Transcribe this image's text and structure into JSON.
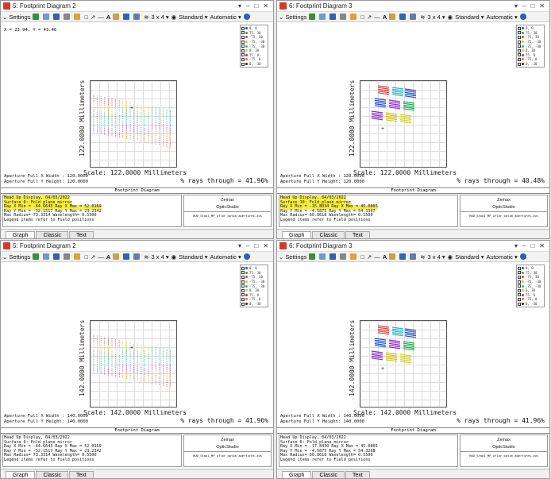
{
  "toolbar": {
    "settings": "Settings",
    "layout": "3 x 4",
    "standard": "Standard",
    "automatic": "Automatic"
  },
  "footer_tabs": [
    "Graph",
    "Classic",
    "Text"
  ],
  "legend_items": [
    "0, 0",
    "75, 30",
    "-75, 30",
    "-75, -30",
    "-75, -30",
    "0, 30",
    "75, 0",
    "-75, 0",
    "0, -30"
  ],
  "common": {
    "plot_title": "Footprint Diagram",
    "info_line1": "Head Up Display, 04/03/2022",
    "zemax_line1": "Zemax",
    "zemax_line2": "OpticStudio",
    "zemax_file": "HUD_Stop1_MP_uflor_optim_apertures.zos"
  },
  "windows": [
    {
      "title": "5: Footprint Diagram 2",
      "coord": "X = 23.94, Y = 43.46",
      "ylabel": "122.0000 Millimeters",
      "xlabel": "Scale: 122.0000 Millimeters",
      "aper_x": "Aperture Full X Width : 120.0000",
      "aper_y": "Aperture Full Y Height: 120.0000",
      "rays": "% rays through = 41.96%",
      "info_surface": "Surface 6: Fold plane mirror",
      "info_l3": "Ray X Min = -64.6643 Ray X Max = 52.0169",
      "info_l4": "Ray Y Min = -52.1517 Ray Y Max = 23.2342",
      "info_l5": "Max Radius= 73.3314 Wavelength= 0.5500",
      "info_l6": "Legend items refer to Field positions"
    },
    {
      "title": "6: Footprint Diagram 3",
      "coord": "",
      "ylabel": "122.0000 Millimeters",
      "xlabel": "Scale: 122.0000 Millimeters",
      "aper_x": "Aperture Full X Width : 120.0000",
      "aper_y": "Aperture Full Y Height: 120.0000",
      "rays": "% rays through = 40.48%",
      "info_surface": "Surface 10: Fold plane mirror",
      "info_l3": "Ray X Min = -15.8034 Ray X Max = 45.0865",
      "info_l4": "Ray Y Min = -4.5875 Ray Y Max = 54.1307",
      "info_l5": "Max Radius= 60.8618 Wavelength= 0.5500",
      "info_l6": "Legend items refer to Field positions"
    },
    {
      "title": "5: Footprint Diagram 2",
      "coord": "",
      "ylabel": "142.0000 Millimeters",
      "xlabel": "Scale: 142.0000 Millimeters",
      "aper_x": "Aperture Full X Width : 140.0000",
      "aper_y": "Aperture Full Y Height: 140.0000",
      "rays": "% rays through = 41.96%",
      "info_surface": "Surface 6: Fold plane mirror",
      "info_l3": "Ray X Min = -64.6643 Ray X Max = 52.0169",
      "info_l4": "Ray Y Min = -52.1517 Ray Y Max = 23.2342",
      "info_l5": "Max Radius= 73.3314 Wavelength= 0.5500",
      "info_l6": "Legend items refer to Field positions"
    },
    {
      "title": "6: Footprint Diagram 3",
      "coord": "",
      "ylabel": "142.0000 Millimeters",
      "xlabel": "Scale: 142.0000 Millimeters",
      "aper_x": "Aperture Full X Width : 140.0000",
      "aper_y": "Aperture Full Y Height: 140.0000",
      "rays": "% rays through = 41.96%",
      "info_surface": "Surface 6: Fold plane mirror",
      "info_l3": "Ray X Min = -17.8430 Ray X Max = 45.0865",
      "info_l4": "Ray Y Min = -4.5875 Ray Y Max = 54.3208",
      "info_l5": "Max Radius= 60.8618 Wavelength= 0.5500",
      "info_l6": "Legend items refer to Field positions"
    }
  ]
}
